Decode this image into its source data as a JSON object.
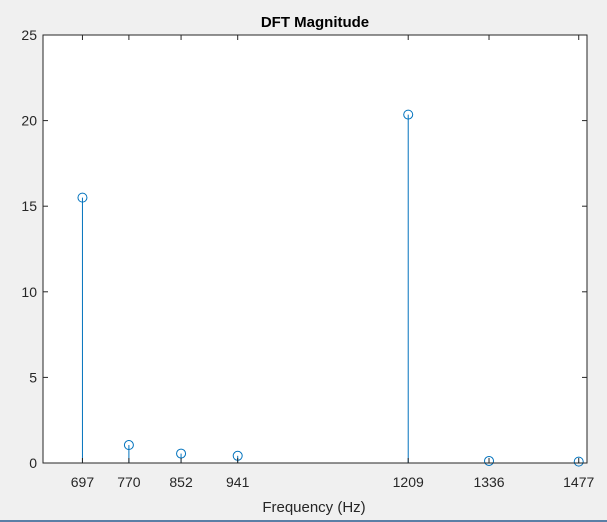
{
  "window": {
    "background": "#f0f0f0",
    "status_strip_color": "#5a7fa6"
  },
  "chart_data": {
    "type": "stem",
    "title": "DFT Magnitude",
    "xlabel": "Frequency (Hz)",
    "ylabel": "",
    "x": [
      697,
      770,
      852,
      941,
      1209,
      1336,
      1477
    ],
    "values": [
      15.5,
      1.05,
      0.55,
      0.42,
      20.35,
      0.12,
      0.08
    ],
    "xlim": [
      635,
      1490
    ],
    "ylim": [
      0,
      25
    ],
    "xticks": [
      697,
      770,
      852,
      941,
      1209,
      1336,
      1477
    ],
    "xtick_labels": [
      "697",
      "770",
      "852",
      "941",
      "1209",
      "1336",
      "1477"
    ],
    "yticks": [
      0,
      5,
      10,
      15,
      20,
      25
    ],
    "ytick_labels": [
      "0",
      "5",
      "10",
      "15",
      "20",
      "25"
    ],
    "grid": false,
    "marker": "circle",
    "stem_color": "#0072bd",
    "axes_color": "#262626",
    "plot_background": "#ffffff"
  }
}
